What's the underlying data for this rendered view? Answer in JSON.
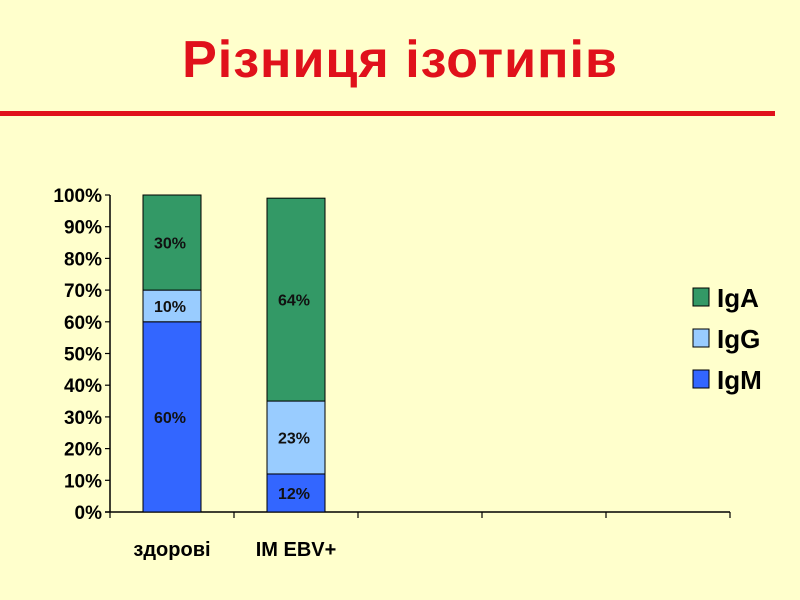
{
  "title": "Різниця ізотипів",
  "chart_data": {
    "type": "bar",
    "stacked": true,
    "categories": [
      "здорові",
      "IM EBV+",
      "",
      "",
      ""
    ],
    "series": [
      {
        "name": "IgM",
        "color": "#3366ff",
        "values": [
          60,
          12,
          null,
          null,
          null
        ],
        "labels": [
          "60%",
          "12%"
        ]
      },
      {
        "name": "IgG",
        "color": "#99ccff",
        "values": [
          10,
          23,
          null,
          null,
          null
        ],
        "labels": [
          "10%",
          "23%"
        ]
      },
      {
        "name": "IgA",
        "color": "#339966",
        "values": [
          30,
          64,
          null,
          null,
          null
        ],
        "labels": [
          "30%",
          "64%"
        ]
      }
    ],
    "ylim": [
      0,
      100
    ],
    "yticks": [
      "0%",
      "10%",
      "20%",
      "30%",
      "40%",
      "50%",
      "60%",
      "70%",
      "80%",
      "90%",
      "100%"
    ],
    "legend": {
      "position": "right",
      "order": [
        "IgA",
        "IgG",
        "IgM"
      ]
    },
    "grid": false
  }
}
